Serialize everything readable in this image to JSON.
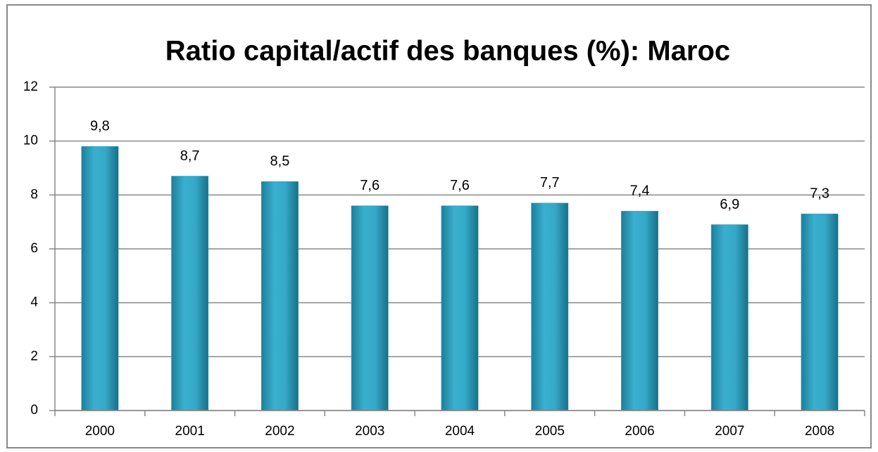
{
  "chart_data": {
    "type": "bar",
    "title": "Ratio capital/actif des banques (%): Maroc",
    "categories": [
      "2000",
      "2001",
      "2002",
      "2003",
      "2004",
      "2005",
      "2006",
      "2007",
      "2008"
    ],
    "values": [
      9.8,
      8.7,
      8.5,
      7.6,
      7.6,
      7.7,
      7.4,
      6.9,
      7.3
    ],
    "value_labels": [
      "9,8",
      "8,7",
      "8,5",
      "7,6",
      "7,6",
      "7,7",
      "7,4",
      "6,9",
      "7,3"
    ],
    "color": "#31a3c3",
    "ylim": [
      0,
      12
    ],
    "yticks": [
      0,
      2,
      4,
      6,
      8,
      10,
      12
    ],
    "grid": true
  }
}
